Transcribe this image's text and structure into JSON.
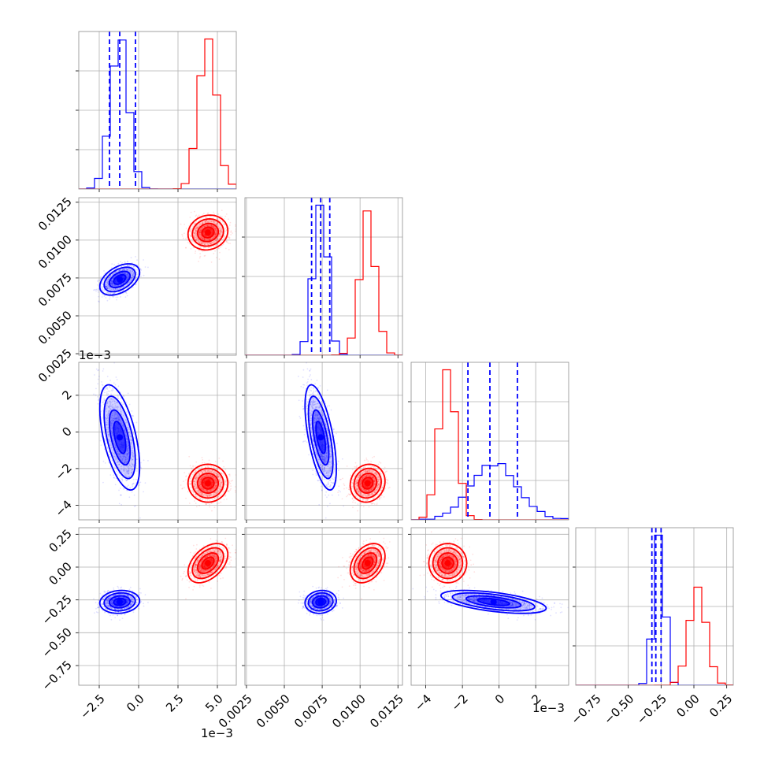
{
  "chart_data": {
    "type": "corner",
    "grid": true,
    "colors": {
      "blue": "#0000ff",
      "red": "#ff0000",
      "grid": "#b0b0b0",
      "frame": "#8c8c8c"
    },
    "offset_labels": {
      "col0": "1e−3",
      "row2": "1e−3",
      "col2": "1e−3"
    },
    "axes": {
      "p0": {
        "range": [
          -3.8,
          6.2
        ],
        "ticks": [
          -2.5,
          0.0,
          2.5,
          5.0
        ],
        "tick_labels": [
          "−2.5",
          "0.0",
          "2.5",
          "5.0"
        ]
      },
      "p1": {
        "range": [
          0.0024,
          0.0128
        ],
        "ticks": [
          0.0025,
          0.005,
          0.0075,
          0.01,
          0.0125
        ],
        "tick_labels": [
          "0.0025",
          "0.0050",
          "0.0075",
          "0.0100",
          "0.0125"
        ]
      },
      "p2": {
        "range": [
          -4.8,
          3.8
        ],
        "ticks": [
          -4,
          -2,
          0,
          2
        ],
        "tick_labels": [
          "−4",
          "−2",
          "0",
          "2"
        ]
      },
      "p3": {
        "range": [
          -0.9,
          0.3
        ],
        "ticks": [
          -0.75,
          -0.5,
          -0.25,
          0.0,
          0.25
        ],
        "tick_labels": [
          "−0.75",
          "−0.50",
          "−0.25",
          "0.00",
          "0.25"
        ]
      }
    },
    "series": [
      {
        "color": "#0000ff",
        "mean": [
          -1.2,
          0.0074,
          -0.3,
          -0.265
        ],
        "std": [
          0.55,
          0.00045,
          1.25,
          0.038
        ],
        "corr": {
          "0-1": 0.45,
          "0-2": -0.55,
          "0-3": 0.1,
          "1-2": -0.6,
          "1-3": 0.1,
          "2-3": -0.55
        },
        "quantiles": [
          [
            -1.85,
            -1.2,
            -0.2
          ],
          [
            0.0068,
            0.0074,
            0.008
          ],
          [
            -1.7,
            -0.5,
            1.0
          ],
          [
            -0.32,
            -0.29,
            -0.25
          ]
        ]
      },
      {
        "color": "#ff0000",
        "mean": [
          4.4,
          0.0105,
          -2.8,
          0.03
        ],
        "std": [
          0.55,
          0.0005,
          0.45,
          0.065
        ],
        "corr": {
          "0-1": 0.1,
          "0-2": 0.0,
          "0-3": 0.45,
          "1-2": 0.1,
          "1-3": 0.35,
          "2-3": 0.0
        }
      }
    ]
  }
}
